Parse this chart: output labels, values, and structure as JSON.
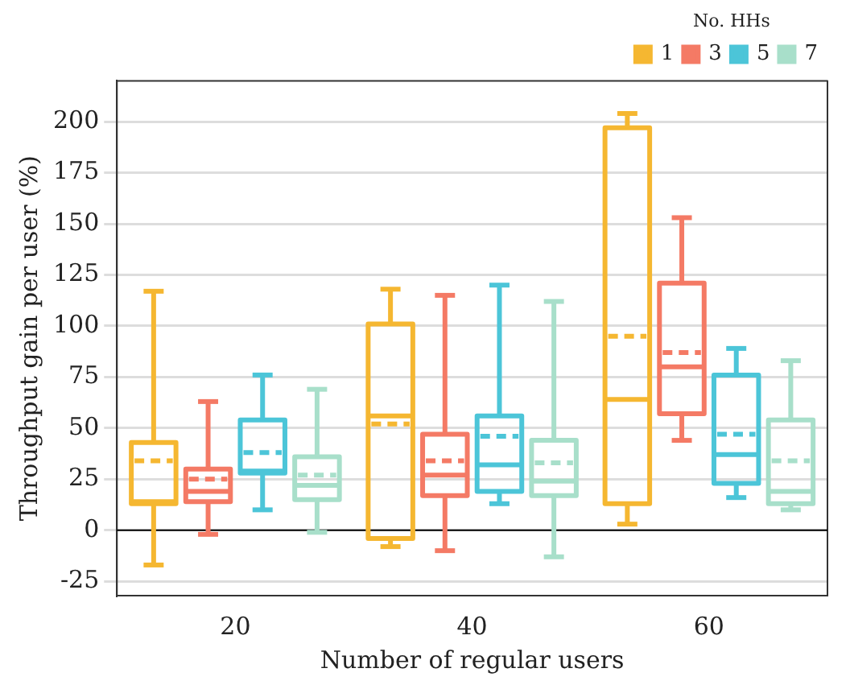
{
  "chart_data": {
    "type": "box",
    "xlabel": "Number of regular users",
    "ylabel": "Throughput gain per user (%)",
    "legend_title": "No. HHs",
    "categories": [
      "20",
      "40",
      "60"
    ],
    "series": [
      {
        "name": "1",
        "color": "#f5b731",
        "boxes": [
          {
            "low": -17,
            "q1": 13,
            "median": 14,
            "q3": 43,
            "high": 117,
            "mean": 34
          },
          {
            "low": -8,
            "q1": -4,
            "median": 56,
            "q3": 101,
            "high": 118,
            "mean": 52
          },
          {
            "low": 3,
            "q1": 13,
            "median": 64,
            "q3": 197,
            "high": 204,
            "mean": 95
          }
        ]
      },
      {
        "name": "3",
        "color": "#f47a65",
        "boxes": [
          {
            "low": -2,
            "q1": 14,
            "median": 19,
            "q3": 30,
            "high": 63,
            "mean": 25
          },
          {
            "low": -10,
            "q1": 17,
            "median": 27,
            "q3": 47,
            "high": 115,
            "mean": 34
          },
          {
            "low": 44,
            "q1": 57,
            "median": 80,
            "q3": 121,
            "high": 153,
            "mean": 87
          }
        ]
      },
      {
        "name": "5",
        "color": "#4cc5d8",
        "boxes": [
          {
            "low": 10,
            "q1": 28,
            "median": 29,
            "q3": 54,
            "high": 76,
            "mean": 38
          },
          {
            "low": 13,
            "q1": 19,
            "median": 32,
            "q3": 56,
            "high": 120,
            "mean": 46
          },
          {
            "low": 16,
            "q1": 23,
            "median": 37,
            "q3": 76,
            "high": 89,
            "mean": 47
          }
        ]
      },
      {
        "name": "7",
        "color": "#a8dfca",
        "boxes": [
          {
            "low": -1,
            "q1": 15,
            "median": 22,
            "q3": 36,
            "high": 69,
            "mean": 27
          },
          {
            "low": -13,
            "q1": 17,
            "median": 24,
            "q3": 44,
            "high": 112,
            "mean": 33
          },
          {
            "low": 10,
            "q1": 13,
            "median": 19,
            "q3": 54,
            "high": 83,
            "mean": 34
          }
        ]
      }
    ],
    "ylim": [
      -32,
      220
    ],
    "yticks": [
      -25,
      0,
      25,
      50,
      75,
      100,
      125,
      150,
      175,
      200
    ],
    "ref_lines": [
      {
        "axis": "y",
        "value": 0,
        "color": "#000000"
      }
    ],
    "grid": "y",
    "legend": "top right"
  }
}
